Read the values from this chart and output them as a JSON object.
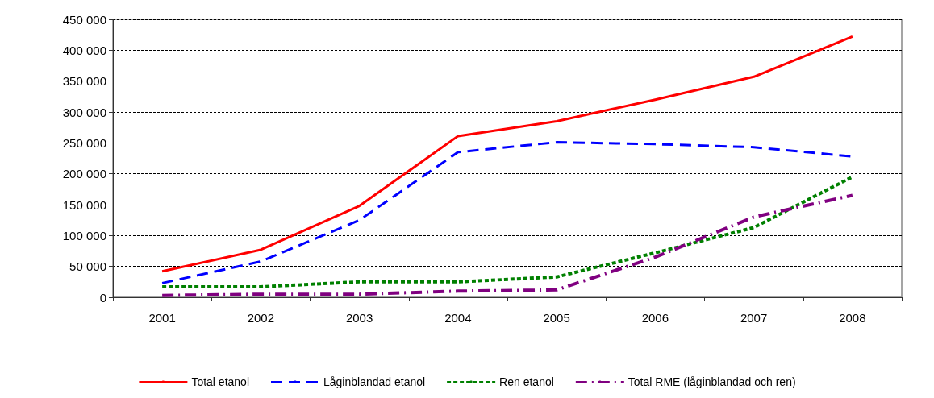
{
  "chart_data": {
    "type": "line",
    "categories": [
      "2001",
      "2002",
      "2003",
      "2004",
      "2005",
      "2006",
      "2007",
      "2008"
    ],
    "series": [
      {
        "name": "Total etanol",
        "color": "#ff0000",
        "line_style": "solid",
        "values": [
          42000,
          77000,
          148000,
          261000,
          285000,
          320000,
          357000,
          422000
        ]
      },
      {
        "name": "Låginblandad etanol",
        "color": "#0000ff",
        "line_style": "dashed",
        "values": [
          23000,
          58000,
          125000,
          235000,
          251000,
          248000,
          243000,
          228000
        ]
      },
      {
        "name": "Ren etanol",
        "color": "#008000",
        "line_style": "dotted",
        "values": [
          17000,
          17000,
          25000,
          25000,
          33000,
          72000,
          113000,
          195000
        ]
      },
      {
        "name": "Total RME (låginblandad och ren)",
        "color": "#800080",
        "line_style": "dashdot",
        "values": [
          3000,
          5000,
          5000,
          10000,
          12000,
          65000,
          130000,
          165000
        ]
      }
    ],
    "ylim": [
      0,
      450000
    ],
    "yticks": [
      {
        "value": 0,
        "label": "0"
      },
      {
        "value": 50000,
        "label": "50 000"
      },
      {
        "value": 100000,
        "label": "100 000"
      },
      {
        "value": 150000,
        "label": "150 000"
      },
      {
        "value": 200000,
        "label": "200 000"
      },
      {
        "value": 250000,
        "label": "250 000"
      },
      {
        "value": 300000,
        "label": "300 000"
      },
      {
        "value": 350000,
        "label": "350 000"
      },
      {
        "value": 400000,
        "label": "400 000"
      },
      {
        "value": 450000,
        "label": "450 000"
      }
    ],
    "grid": "y",
    "legend": "bottom",
    "marker": "none"
  }
}
